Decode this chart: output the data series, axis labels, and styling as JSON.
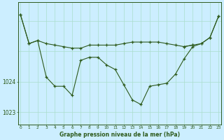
{
  "title": "Graphe pression niveau de la mer (hPa)",
  "bg_color": "#cceeff",
  "line_color": "#2d5a1b",
  "grid_color_major": "#aaddcc",
  "grid_color_minor": "#cceedd",
  "xlim": [
    -0.3,
    23.3
  ],
  "ylim": [
    1022.6,
    1026.6
  ],
  "yticks": [
    1023,
    1024
  ],
  "x_ticks": [
    0,
    1,
    2,
    3,
    4,
    5,
    6,
    7,
    8,
    9,
    10,
    11,
    12,
    13,
    14,
    15,
    16,
    17,
    18,
    19,
    20,
    21,
    22,
    23
  ],
  "line_top_flat": {
    "x": [
      0,
      1,
      2,
      3,
      4,
      5,
      6,
      7,
      8,
      9,
      10,
      11,
      12,
      13,
      14,
      15,
      16,
      17,
      18,
      19,
      20
    ],
    "y": [
      1026.2,
      1025.25,
      1025.35,
      1025.25,
      1025.2,
      1025.15,
      1025.1,
      1025.1,
      1025.2,
      1025.2,
      1025.2,
      1025.2,
      1025.25,
      1025.3,
      1025.3,
      1025.3,
      1025.3,
      1025.25,
      1025.2,
      1025.15,
      1025.2
    ]
  },
  "line_main_dip": {
    "x": [
      0,
      1,
      2,
      3,
      4,
      5,
      6,
      7,
      8,
      9,
      10,
      11,
      12,
      13,
      14,
      15,
      16,
      17,
      18,
      19,
      20,
      21,
      22,
      23
    ],
    "y": [
      1026.2,
      1025.25,
      1025.35,
      1024.15,
      1023.85,
      1023.85,
      1023.55,
      1024.7,
      1024.8,
      1024.8,
      1024.55,
      1024.4,
      1023.9,
      1023.4,
      1023.25,
      1023.85,
      1023.9,
      1023.95,
      1024.25,
      1024.75,
      1025.15,
      1025.25,
      1025.45,
      1026.15
    ]
  },
  "line_upper_end": {
    "x": [
      19,
      20,
      21,
      22,
      23
    ],
    "y": [
      1025.15,
      1025.2,
      1025.25,
      1025.45,
      1026.15
    ]
  },
  "line_cross": {
    "x": [
      1,
      2,
      3,
      4,
      5,
      6,
      7,
      8,
      9,
      10,
      11,
      12,
      13,
      14,
      15,
      16,
      17,
      18,
      19,
      20
    ],
    "y": [
      1025.25,
      1025.35,
      1025.25,
      1025.2,
      1025.15,
      1025.1,
      1025.1,
      1025.2,
      1025.2,
      1025.2,
      1025.2,
      1025.25,
      1025.3,
      1025.3,
      1025.3,
      1025.3,
      1025.25,
      1025.2,
      1025.15,
      1025.2
    ]
  }
}
